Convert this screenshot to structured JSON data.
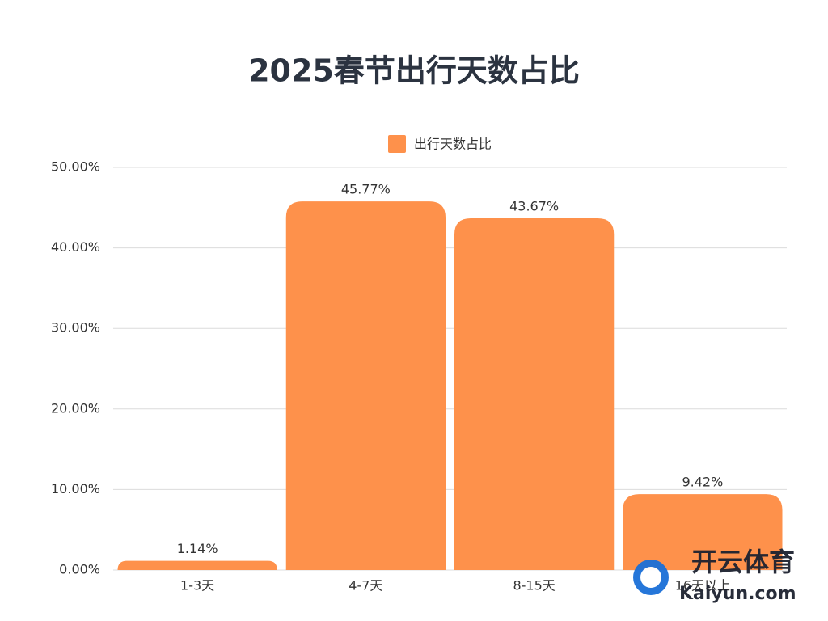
{
  "chart_data": {
    "type": "bar",
    "title": "2025春节出行天数占比",
    "legend": "出行天数占比",
    "categories": [
      "1-3天",
      "4-7天",
      "8-15天",
      "16天以上"
    ],
    "values": [
      1.14,
      45.77,
      43.67,
      9.42
    ],
    "value_labels": [
      "1.14%",
      "45.77%",
      "43.67%",
      "9.42%"
    ],
    "color": "#fe914b",
    "ylim": [
      0,
      50
    ],
    "yticks": [
      {
        "value": 0,
        "label": "0.00%"
      },
      {
        "value": 10,
        "label": "10.00%"
      },
      {
        "value": 20,
        "label": "20.00%"
      },
      {
        "value": 30,
        "label": "30.00%"
      },
      {
        "value": 40,
        "label": "40.00%"
      },
      {
        "value": 50,
        "label": "50.00%"
      }
    ],
    "grid": true,
    "watermark": [
      "开云体育",
      "Kaiyun.com"
    ]
  }
}
